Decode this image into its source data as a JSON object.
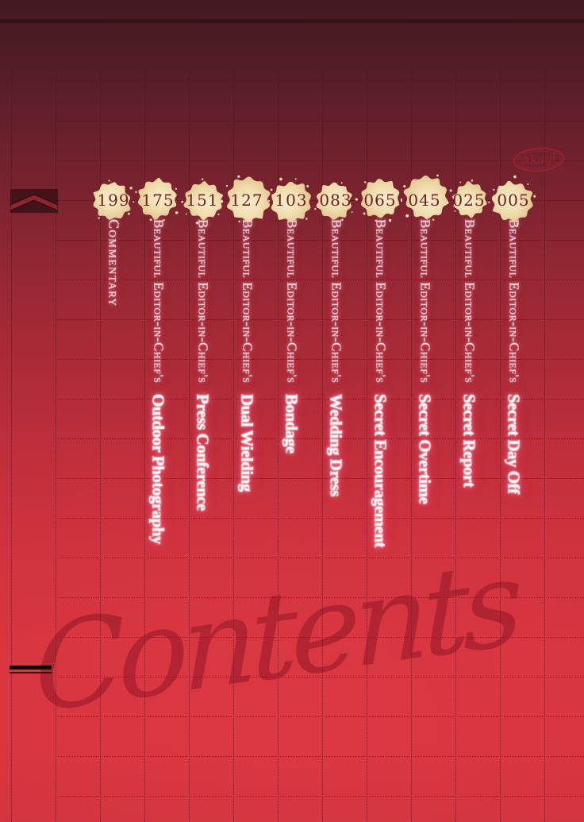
{
  "watermark": {
    "text": "Contents"
  },
  "logo": {
    "text": "Akagi"
  },
  "toc": {
    "series_prefix": "Beautiful Editor-in-Chief's",
    "entries": [
      {
        "page_number": "199",
        "series": "",
        "title": "Commentary",
        "plain": true
      },
      {
        "page_number": "175",
        "series": "Beautiful Editor-in-Chief's",
        "title": "Outdoor Photography"
      },
      {
        "page_number": "151",
        "series": "Beautiful Editor-in-Chief's",
        "title": "Press Conference"
      },
      {
        "page_number": "127",
        "series": "Beautiful Editor-in-Chief's",
        "title": "Dual Wielding"
      },
      {
        "page_number": "103",
        "series": "Beautiful Editor-in-Chief's",
        "title": "Bondage"
      },
      {
        "page_number": "083",
        "series": "Beautiful Editor-in-Chief's",
        "title": "Wedding Dress"
      },
      {
        "page_number": "065",
        "series": "Beautiful Editor-in-Chief's",
        "title": "Secret Encouragement"
      },
      {
        "page_number": "045",
        "series": "Beautiful Editor-in-Chief's",
        "title": "Secret Overtime"
      },
      {
        "page_number": "025",
        "series": "Beautiful Editor-in-Chief's",
        "title": "Secret Report"
      },
      {
        "page_number": "005",
        "series": "Beautiful Editor-in-Chief's",
        "title": "Secret Day Off"
      }
    ]
  },
  "colors": {
    "background_top": "#431921",
    "background_bottom": "#d7343f",
    "splat_cream": "#efdcb2",
    "page_number_ink": "#6d2125",
    "glow_pink": "#ff9db5",
    "grid_line": "#3a0a10",
    "logo_red": "#9c2330"
  }
}
